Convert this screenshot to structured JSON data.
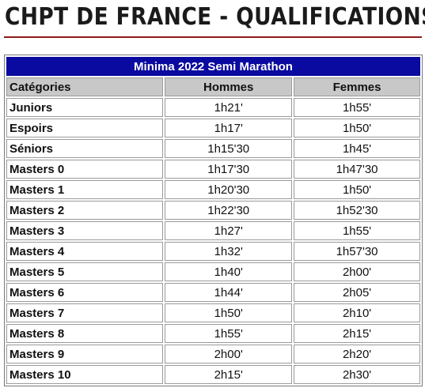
{
  "page": {
    "title": "CHPT DE FRANCE - QUALIFICATIONS"
  },
  "table": {
    "caption": "Minima 2022 Semi Marathon",
    "headers": [
      "Catégories",
      "Hommes",
      "Femmes"
    ],
    "rows": [
      {
        "category": "Juniors",
        "men": "1h21'",
        "women": "1h55'"
      },
      {
        "category": "Espoirs",
        "men": "1h17'",
        "women": "1h50'"
      },
      {
        "category": "Séniors",
        "men": "1h15'30",
        "women": "1h45'"
      },
      {
        "category": "Masters 0",
        "men": "1h17'30",
        "women": "1h47'30"
      },
      {
        "category": "Masters 1",
        "men": "1h20'30",
        "women": "1h50'"
      },
      {
        "category": "Masters 2",
        "men": "1h22'30",
        "women": "1h52'30"
      },
      {
        "category": "Masters 3",
        "men": "1h27'",
        "women": "1h55'"
      },
      {
        "category": "Masters 4",
        "men": "1h32'",
        "women": "1h57'30"
      },
      {
        "category": "Masters 5",
        "men": "1h40'",
        "women": "2h00'"
      },
      {
        "category": "Masters 6",
        "men": "1h44'",
        "women": "2h05'"
      },
      {
        "category": "Masters 7",
        "men": "1h50'",
        "women": "2h10'"
      },
      {
        "category": "Masters 8",
        "men": "1h55'",
        "women": "2h15'"
      },
      {
        "category": "Masters 9",
        "men": "2h00'",
        "women": "2h20'"
      },
      {
        "category": "Masters 10",
        "men": "2h15'",
        "women": "2h30'"
      }
    ]
  },
  "colors": {
    "caption_bg": "#0a0aa0",
    "header_bg": "#c8c8c8",
    "title_rule": "#8b1a1a"
  }
}
